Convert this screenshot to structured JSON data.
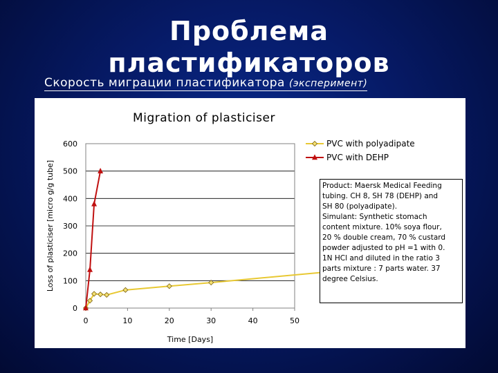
{
  "slide": {
    "title_line1": "Проблема",
    "title_line2": "пластификаторов",
    "subtitle_main": "Скорость миграции пластификатора",
    "subtitle_em": "(эксперимент)"
  },
  "chart_data": {
    "type": "line",
    "title": "Migration of plasticiser",
    "xlabel": "Time [Days]",
    "ylabel": "Loss of plasticiser [micro g/g tube]",
    "xlim": [
      0,
      50
    ],
    "ylim": [
      0,
      600
    ],
    "xticks": [
      0,
      10,
      20,
      30,
      40,
      50
    ],
    "yticks": [
      0,
      100,
      200,
      300,
      400,
      500,
      600
    ],
    "grid": "horizontal",
    "legend_position": "right",
    "series": [
      {
        "name": "PVC with polyadipate",
        "color": "#e8c832",
        "marker": "diamond",
        "points": [
          [
            0,
            0
          ],
          [
            1,
            27
          ],
          [
            2,
            52
          ],
          [
            3.5,
            50
          ],
          [
            5,
            48
          ],
          [
            9.5,
            66
          ],
          [
            20,
            80
          ],
          [
            30,
            93
          ],
          [
            60,
            135
          ]
        ]
      },
      {
        "name": "PVC with DEHP",
        "color": "#c01010",
        "marker": "triangle",
        "points": [
          [
            0,
            0
          ],
          [
            1,
            140
          ],
          [
            2,
            380
          ],
          [
            3.5,
            500
          ]
        ]
      }
    ],
    "note": {
      "line1": "Product: Maersk Medical Feeding",
      "line2": "tubing. CH 8, SH 78 (DEHP) and",
      "line3": "SH 80 (polyadipate).",
      "line4": "Simulant: Synthetic stomach",
      "line5": "content mixture. 10% soya flour,",
      "line6": "20 % double cream, 70 % custard",
      "line7": "powder adjusted to pH =1 with 0.",
      "line8": "1N HCl and diluted in the ratio 3",
      "line9": "parts mixture : 7 parts water. 37",
      "line10": "degree Celsius."
    }
  }
}
